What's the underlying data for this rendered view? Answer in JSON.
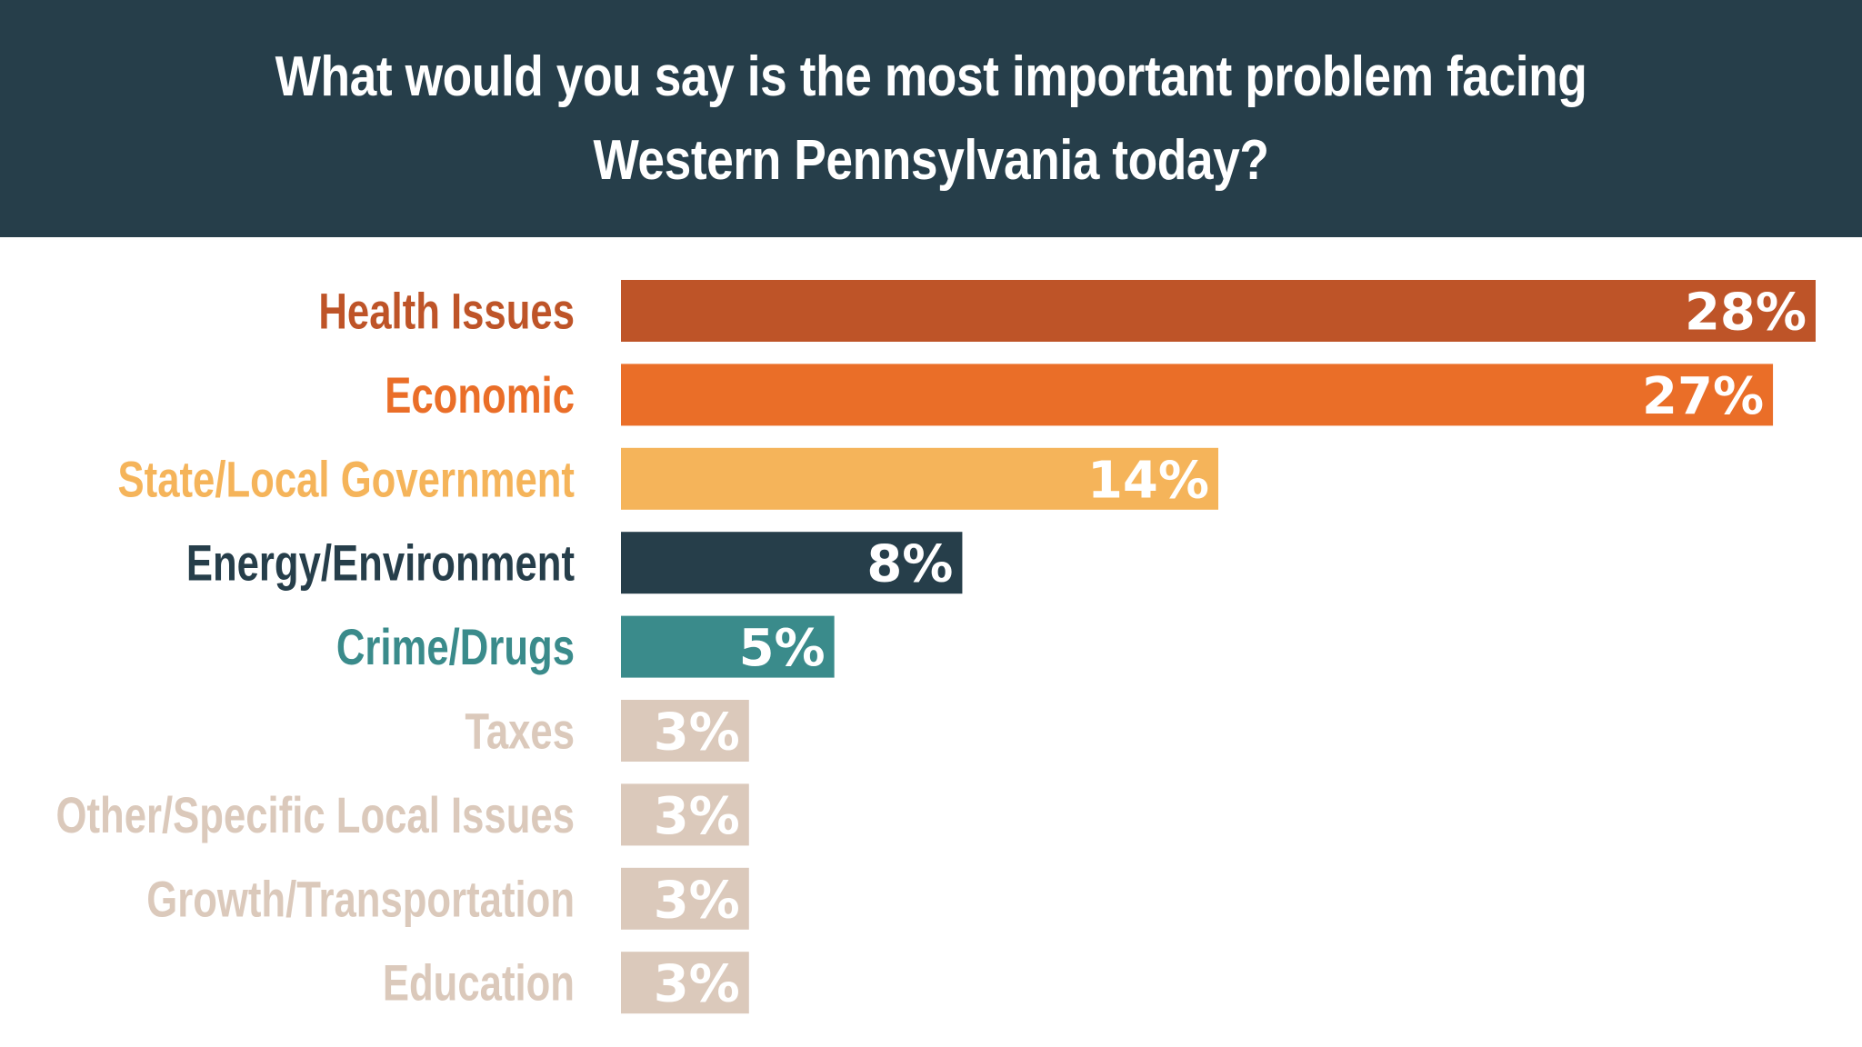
{
  "chart_data": {
    "type": "bar",
    "orientation": "horizontal",
    "title": "What would you say is the most important problem facing Western Pennsylvania today?",
    "categories": [
      "Health Issues",
      "Economic",
      "State/Local Government",
      "Energy/Environment",
      "Crime/Drugs",
      "Taxes",
      "Other/Specific Local Issues",
      "Growth/Transportation",
      "Education"
    ],
    "values": [
      28,
      27,
      14,
      8,
      5,
      3,
      3,
      3,
      3
    ],
    "value_labels": [
      "28%",
      "27%",
      "14%",
      "8%",
      "5%",
      "3%",
      "3%",
      "3%",
      "3%"
    ],
    "unit": "%",
    "colors": [
      "#be5428",
      "#ea6e28",
      "#f5b45a",
      "#263e4a",
      "#3a8b8b",
      "#dbc9bb",
      "#dbc9bb",
      "#dbc9bb",
      "#dbc9bb"
    ],
    "title_background": "#263e4a",
    "xlim": [
      0,
      28
    ],
    "grid": false,
    "legend": "none"
  }
}
